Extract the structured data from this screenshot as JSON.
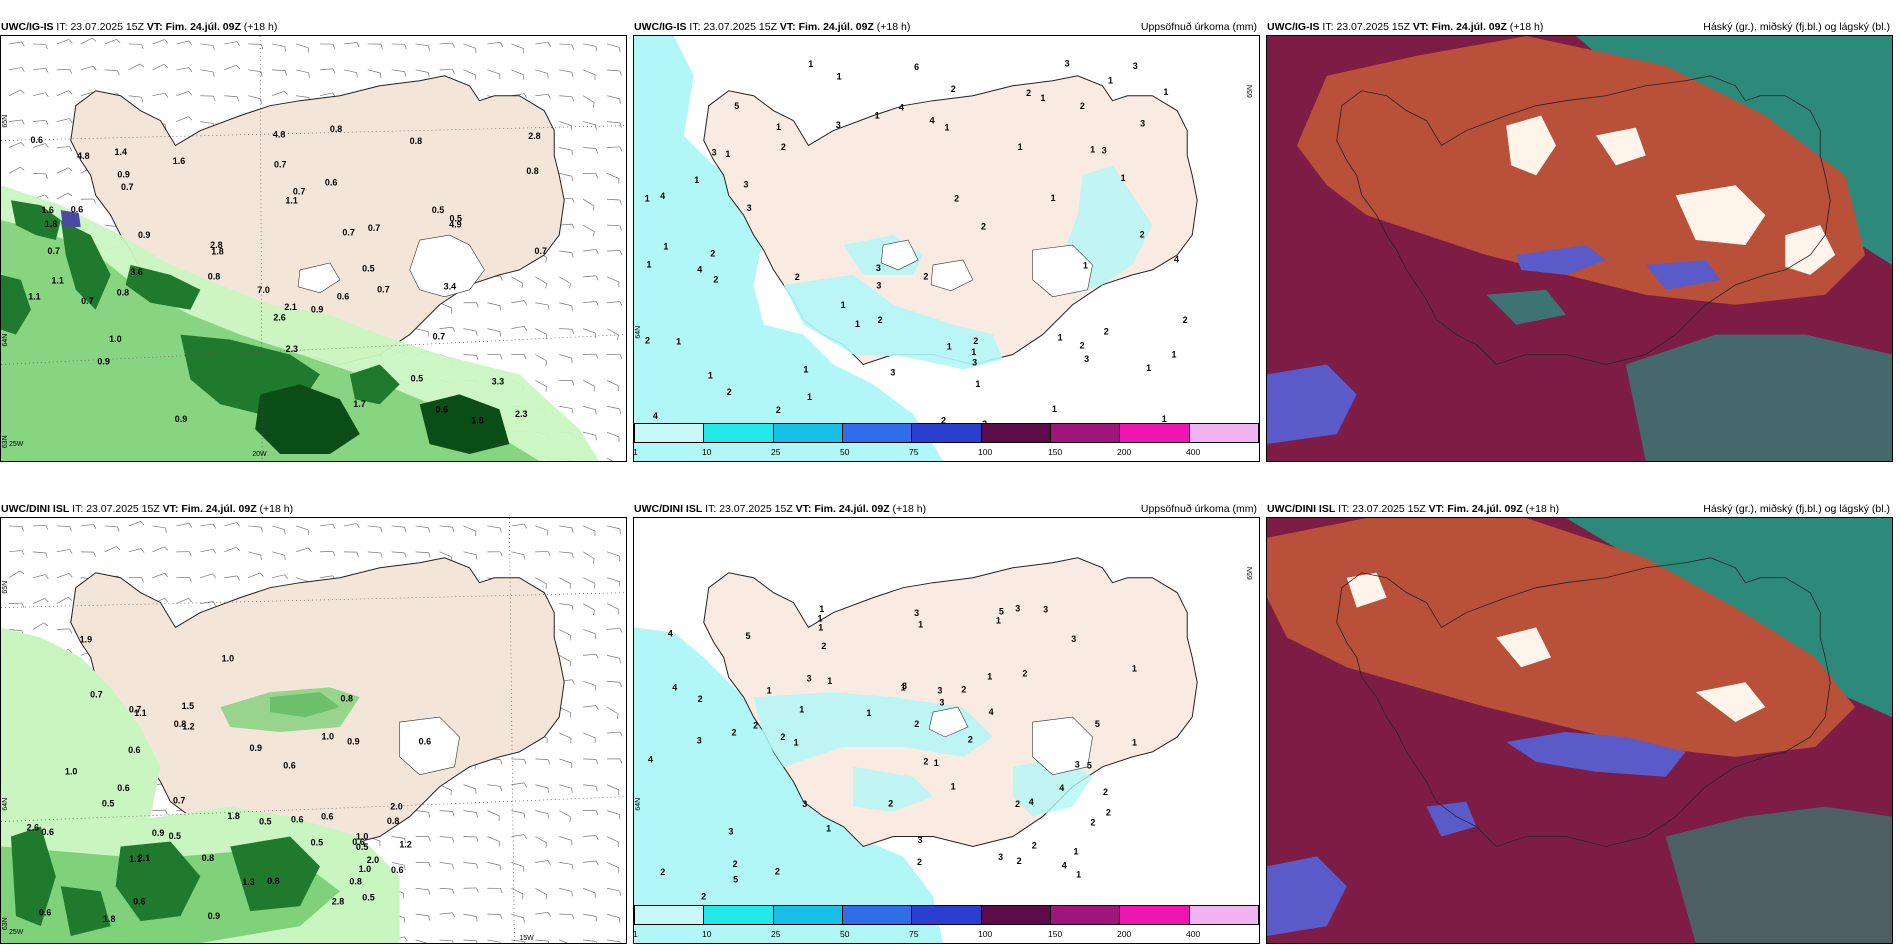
{
  "colors": {
    "land": "#f3e6d8",
    "sea_white": "#ffffff",
    "precip_light": "#c9f5c0",
    "precip_mid": "#7fd17a",
    "precip_dark": "#1f7a2e",
    "precip_darkest": "#0b4d17",
    "cyan_light": "#b2f7f7",
    "cloud_bg": "#7d1d45",
    "cloud_mid": "#b9503a",
    "cloud_high": "#ffffff",
    "cloud_teal": "#2d8a7a",
    "cloud_blue": "#5a5bc8"
  },
  "top": {
    "left": {
      "model": "UWC/IG-IS",
      "it_label": "IT:",
      "it_value": "23.07.2025 15Z",
      "vt_label": "VT:",
      "vt_value": "Fim. 24.júl. 09Z",
      "lead": "(+18 h)",
      "lat_labels": [
        "65N",
        "64N",
        "63N"
      ],
      "lon_labels": [
        "25W",
        "20W"
      ],
      "values": [
        "0.9",
        "0.6",
        "1.1",
        "0.9",
        "1.7",
        "7.0",
        "0.6",
        "0.6",
        "0.6",
        "0.8",
        "0.8",
        "1.6",
        "0.5",
        "4.8",
        "1.8",
        "4.8",
        "2.8",
        "0.5",
        "1.0",
        "1.8",
        "2.6",
        "0.8",
        "1.1",
        "0.7",
        "1.8",
        "1.1",
        "0.7",
        "0.7",
        "0.7",
        "0.8",
        "2.3",
        "0.5",
        "2.3",
        "0.9",
        "0.7",
        "2.1",
        "0.7",
        "0.7",
        "0.7",
        "0.5",
        "1.6",
        "0.6",
        "0.8",
        "3.6",
        "3.4",
        "2.8",
        "4.9",
        "0.9",
        "3.3",
        "0.9",
        "1.4",
        "0.7",
        "0.7"
      ]
    },
    "middle": {
      "model": "UWC/IG-IS",
      "it_label": "IT:",
      "it_value": "23.07.2025 15Z",
      "vt_label": "VT:",
      "vt_value": "Fim. 24.júl. 09Z",
      "lead": "(+18 h)",
      "title_right": "Uppsöfnuð úrkoma (mm)",
      "lat_labels": [
        "65N",
        "64N"
      ],
      "values": [
        "1",
        "1",
        "1",
        "1",
        "2",
        "2",
        "1",
        "2",
        "1",
        "2",
        "1",
        "6",
        "3",
        "2",
        "2",
        "3",
        "2",
        "1",
        "2",
        "2",
        "3",
        "3",
        "3",
        "3",
        "4",
        "4",
        "4",
        "4",
        "3",
        "3",
        "3",
        "5",
        "4",
        "3",
        "2",
        "1",
        "1",
        "1",
        "1",
        "2",
        "1",
        "1",
        "1",
        "3",
        "1",
        "2",
        "2",
        "1",
        "2",
        "1",
        "1",
        "1",
        "2",
        "1",
        "2",
        "2",
        "1",
        "1",
        "1",
        "3",
        "1",
        "3",
        "3",
        "2",
        "1",
        "1",
        "1",
        "1",
        "1",
        "2",
        "1",
        "4",
        "2",
        "1",
        "1"
      ],
      "colorbar": {
        "colors": [
          "#c8f7f7",
          "#22e8e8",
          "#18c0e8",
          "#2f6ee8",
          "#2a3fd0",
          "#5c0a48",
          "#a0157c",
          "#ee15b0",
          "#f2b3f2"
        ],
        "ticks": [
          "1",
          "10",
          "25",
          "50",
          "75",
          "100",
          "150",
          "200",
          "400"
        ]
      }
    },
    "right": {
      "model": "UWC/IG-IS",
      "it_label": "IT:",
      "it_value": "23.07.2025 15Z",
      "vt_label": "VT:",
      "vt_value": "Fim. 24.júl. 09Z",
      "lead": "(+18 h)",
      "title_right": "Háský (gr.), miðský (fj.bl.) og lágský (bl.)"
    }
  },
  "bottom": {
    "left": {
      "model": "UWC/DINI ISL",
      "it_label": "IT:",
      "it_value": "23.07.2025 15Z",
      "vt_label": "VT:",
      "vt_value": "Fim. 24.júl. 09Z",
      "lead": "(+18 h)",
      "lat_labels": [
        "65N",
        "64N",
        "63N"
      ],
      "lon_labels": [
        "25W",
        "15W"
      ],
      "values": [
        "0.6",
        "0.9",
        "0.6",
        "0.5",
        "1.1",
        "2.0",
        "0.8",
        "1.1",
        "0.8",
        "0.5",
        "0.7",
        "0.9",
        "0.8",
        "0.6",
        "1.0",
        "0.8",
        "1.2",
        "0.6",
        "0.6",
        "0.9",
        "1.5",
        "2.8",
        "1.8",
        "1.3",
        "0.6",
        "1.0",
        "2.6",
        "1.0",
        "0.6",
        "1.9",
        "0.5",
        "0.6",
        "0.7",
        "2.1",
        "0.6",
        "0.5",
        "1.8",
        "0.8",
        "0.6",
        "1.0",
        "0.8",
        "2.0",
        "0.5",
        "0.7",
        "0.9",
        "1.0",
        "0.5",
        "1.2",
        "0.6"
      ]
    },
    "middle": {
      "model": "UWC/DINI ISL",
      "it_label": "IT:",
      "it_value": "23.07.2025 15Z",
      "vt_label": "VT:",
      "vt_value": "Fim. 24.júl. 09Z",
      "lead": "(+18 h)",
      "title_right": "Uppsöfnuð úrkoma (mm)",
      "lat_labels": [
        "65N",
        "64N"
      ],
      "values": [
        "1",
        "1",
        "1",
        "1",
        "2",
        "1",
        "1",
        "3",
        "2",
        "3",
        "2",
        "2",
        "1",
        "2",
        "3",
        "4",
        "2",
        "2",
        "3",
        "2",
        "5",
        "4",
        "5",
        "4",
        "5",
        "4",
        "3",
        "2",
        "3",
        "3",
        "2",
        "4",
        "5",
        "3",
        "2",
        "2",
        "2",
        "1",
        "1",
        "2",
        "4",
        "3",
        "2",
        "1",
        "1",
        "1",
        "2",
        "1",
        "1",
        "2",
        "1",
        "1",
        "1",
        "2",
        "1",
        "2",
        "1",
        "3",
        "1",
        "1",
        "2",
        "2",
        "4",
        "2",
        "3",
        "3",
        "3",
        "5",
        "3",
        "2"
      ],
      "colorbar": {
        "colors": [
          "#c8f7f7",
          "#22e8e8",
          "#18c0e8",
          "#2f6ee8",
          "#2a3fd0",
          "#5c0a48",
          "#a0157c",
          "#ee15b0",
          "#f2b3f2"
        ],
        "ticks": [
          "1",
          "10",
          "25",
          "50",
          "75",
          "100",
          "150",
          "200",
          "400"
        ]
      }
    },
    "right": {
      "model": "UWC/DINI ISL",
      "it_label": "IT:",
      "it_value": "23.07.2025 15Z",
      "vt_label": "VT:",
      "vt_value": "Fim. 24.júl. 09Z",
      "lead": "(+18 h)",
      "title_right": "Háský (gr.), miðský (fj.bl.) og lágský (bl.)"
    }
  }
}
